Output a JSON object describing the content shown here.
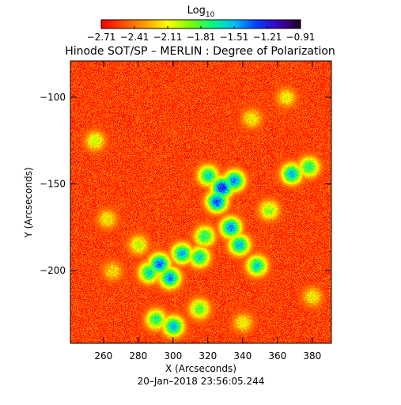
{
  "chart_data": {
    "type": "heatmap",
    "title": "Hinode SOT/SP – MERLIN : Degree of Polarization",
    "colorbar": {
      "label_base": "Log",
      "label_sub": "10",
      "ticks": [
        "−2.71",
        "−2.41",
        "−2.11",
        "−1.81",
        "−1.51",
        "−1.21",
        "−0.91"
      ],
      "range": [
        -2.71,
        -0.91
      ],
      "colormap": [
        "#ff0000",
        "#ff5000",
        "#ffa000",
        "#ffff00",
        "#80ff00",
        "#00ff80",
        "#00c0ff",
        "#0040ff",
        "#4000c0",
        "#200020"
      ]
    },
    "xlabel": "X (Arcseconds)",
    "ylabel": "Y (Arcseconds)",
    "xlim": [
      241,
      391
    ],
    "ylim": [
      -242,
      -79
    ],
    "x_ticks": [
      {
        "value": 260,
        "label": "260"
      },
      {
        "value": 280,
        "label": "280"
      },
      {
        "value": 300,
        "label": "300"
      },
      {
        "value": 320,
        "label": "320"
      },
      {
        "value": 340,
        "label": "340"
      },
      {
        "value": 360,
        "label": "360"
      },
      {
        "value": 380,
        "label": "380"
      }
    ],
    "y_ticks": [
      {
        "value": -100,
        "label": "−100"
      },
      {
        "value": -150,
        "label": "−150"
      },
      {
        "value": -200,
        "label": "−200"
      }
    ],
    "features": [
      {
        "x": 328,
        "y": -152,
        "level": -1.2
      },
      {
        "x": 325,
        "y": -160,
        "level": -1.3
      },
      {
        "x": 335,
        "y": -148,
        "level": -1.4
      },
      {
        "x": 320,
        "y": -145,
        "level": -1.6
      },
      {
        "x": 333,
        "y": -175,
        "level": -1.4
      },
      {
        "x": 338,
        "y": -185,
        "level": -1.5
      },
      {
        "x": 318,
        "y": -180,
        "level": -1.7
      },
      {
        "x": 305,
        "y": -190,
        "level": -1.5
      },
      {
        "x": 292,
        "y": -196,
        "level": -1.35
      },
      {
        "x": 298,
        "y": -204,
        "level": -1.4
      },
      {
        "x": 286,
        "y": -201,
        "level": -1.6
      },
      {
        "x": 315,
        "y": -192,
        "level": -1.6
      },
      {
        "x": 348,
        "y": -197,
        "level": -1.6
      },
      {
        "x": 355,
        "y": -165,
        "level": -1.9
      },
      {
        "x": 368,
        "y": -144,
        "level": -1.5
      },
      {
        "x": 378,
        "y": -140,
        "level": -1.7
      },
      {
        "x": 300,
        "y": -232,
        "level": -1.5
      },
      {
        "x": 290,
        "y": -228,
        "level": -1.7
      },
      {
        "x": 315,
        "y": -222,
        "level": -1.8
      },
      {
        "x": 255,
        "y": -125,
        "level": -2.0
      },
      {
        "x": 262,
        "y": -170,
        "level": -2.1
      },
      {
        "x": 280,
        "y": -185,
        "level": -2.0
      },
      {
        "x": 345,
        "y": -112,
        "level": -2.1
      },
      {
        "x": 365,
        "y": -100,
        "level": -2.1
      },
      {
        "x": 380,
        "y": -215,
        "level": -2.1
      },
      {
        "x": 340,
        "y": -230,
        "level": -2.1
      },
      {
        "x": 265,
        "y": -200,
        "level": -2.15
      }
    ],
    "timestamp": "20–Jan–2018 23:56:05.244"
  }
}
